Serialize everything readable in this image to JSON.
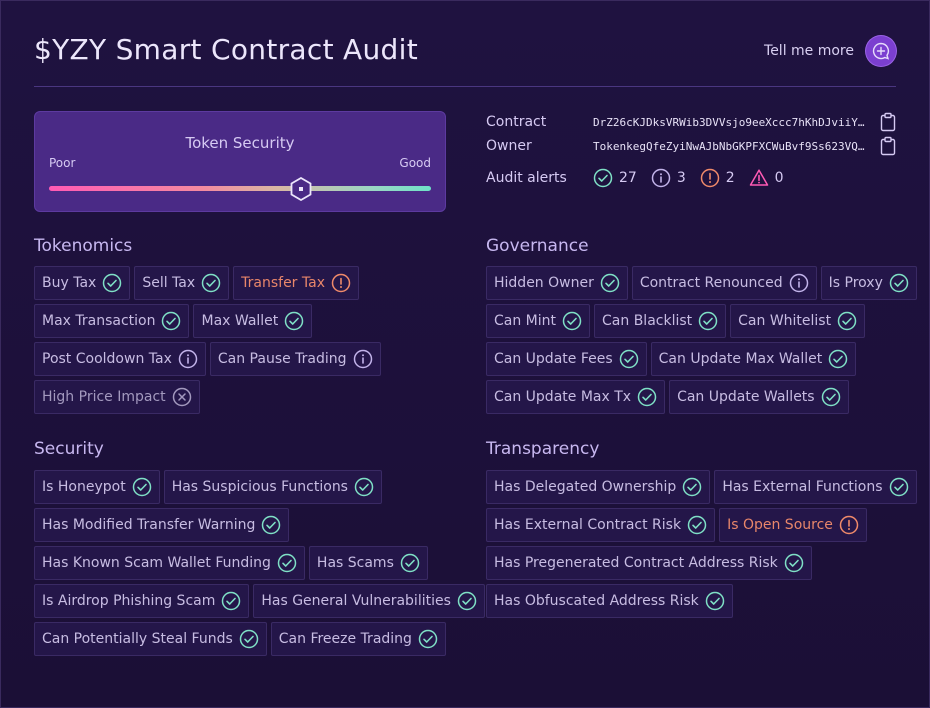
{
  "header": {
    "title": "$YZY Smart Contract Audit",
    "tell_more": "Tell me more"
  },
  "token_security": {
    "title": "Token Security",
    "poor": "Poor",
    "good": "Good",
    "level": 0.66
  },
  "info": {
    "contract_label": "Contract",
    "contract_value": "DrZ26cKJDksVRWib3DVVsjo9eeXccc7hKhDJviiYE…",
    "owner_label": "Owner",
    "owner_value": "TokenkegQfeZyiNwAJbNbGKPFXCWuBvf9Ss623VQ5…",
    "alerts_label": "Audit alerts",
    "alerts": {
      "pass": "27",
      "info": "3",
      "warn": "2",
      "danger": "0"
    }
  },
  "colors": {
    "pass": "#7fe0c6",
    "info": "#c2b3ea",
    "warn": "#f08a6a",
    "danger": "#ff5ab4",
    "muted": "#a399be"
  },
  "sections": {
    "tokenomics": {
      "title": "Tokenomics",
      "rows": [
        [
          {
            "label": "Buy Tax",
            "status": "pass"
          },
          {
            "label": "Sell Tax",
            "status": "pass"
          },
          {
            "label": "Transfer Tax",
            "status": "warn"
          }
        ],
        [
          {
            "label": "Max Transaction",
            "status": "pass"
          },
          {
            "label": "Max Wallet",
            "status": "pass"
          }
        ],
        [
          {
            "label": "Post Cooldown Tax",
            "status": "info"
          },
          {
            "label": "Can Pause Trading",
            "status": "info"
          }
        ],
        [
          {
            "label": "High Price Impact",
            "status": "x"
          }
        ]
      ]
    },
    "governance": {
      "title": "Governance",
      "rows": [
        [
          {
            "label": "Hidden Owner",
            "status": "pass"
          },
          {
            "label": "Contract Renounced",
            "status": "info"
          },
          {
            "label": "Is Proxy",
            "status": "pass"
          }
        ],
        [
          {
            "label": "Can Mint",
            "status": "pass"
          },
          {
            "label": "Can Blacklist",
            "status": "pass"
          },
          {
            "label": "Can Whitelist",
            "status": "pass"
          }
        ],
        [
          {
            "label": "Can Update Fees",
            "status": "pass"
          },
          {
            "label": "Can Update Max Wallet",
            "status": "pass"
          }
        ],
        [
          {
            "label": "Can Update Max Tx",
            "status": "pass"
          },
          {
            "label": "Can Update Wallets",
            "status": "pass"
          }
        ]
      ]
    },
    "security": {
      "title": "Security",
      "rows": [
        [
          {
            "label": "Is Honeypot",
            "status": "pass"
          },
          {
            "label": "Has Suspicious Functions",
            "status": "pass"
          }
        ],
        [
          {
            "label": "Has Modified Transfer Warning",
            "status": "pass"
          }
        ],
        [
          {
            "label": "Has Known Scam Wallet Funding",
            "status": "pass"
          },
          {
            "label": "Has Scams",
            "status": "pass"
          }
        ],
        [
          {
            "label": "Is Airdrop Phishing Scam",
            "status": "pass"
          },
          {
            "label": "Has General Vulnerabilities",
            "status": "pass"
          }
        ],
        [
          {
            "label": "Can Potentially Steal Funds",
            "status": "pass"
          },
          {
            "label": "Can Freeze Trading",
            "status": "pass"
          }
        ]
      ]
    },
    "transparency": {
      "title": "Transparency",
      "rows": [
        [
          {
            "label": "Has Delegated Ownership",
            "status": "pass"
          },
          {
            "label": "Has External Functions",
            "status": "pass"
          }
        ],
        [
          {
            "label": "Has External Contract Risk",
            "status": "pass"
          },
          {
            "label": "Is Open Source",
            "status": "warn"
          }
        ],
        [
          {
            "label": "Has Pregenerated Contract Address Risk",
            "status": "pass"
          }
        ],
        [
          {
            "label": "Has Obfuscated Address Risk",
            "status": "pass"
          }
        ]
      ]
    }
  }
}
